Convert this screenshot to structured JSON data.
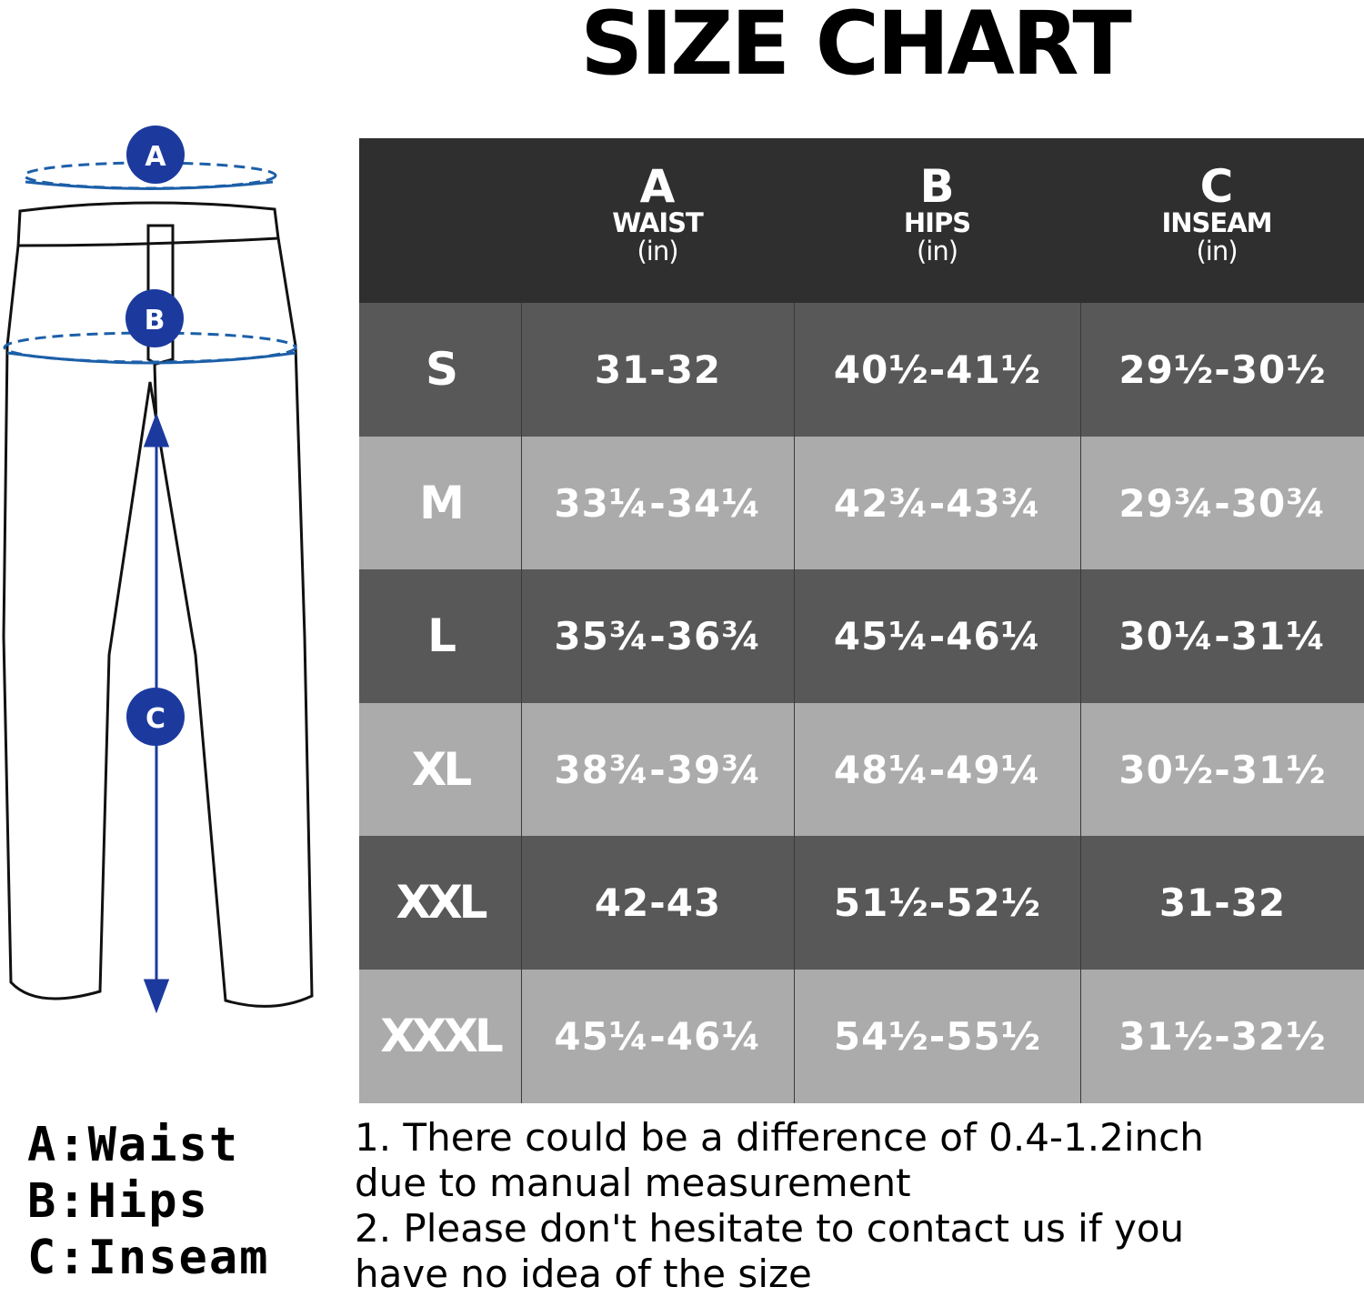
{
  "title": "SIZE CHART",
  "colors": {
    "header_bg": "#2f2f2f",
    "row_dark": "#585858",
    "row_light": "#ababab",
    "marker_blue": "#1c3a9e"
  },
  "illustration": {
    "icon": "pants-outline-icon",
    "markers": [
      "A",
      "B",
      "C"
    ]
  },
  "table": {
    "columns": [
      {
        "letter": "A",
        "name": "WAIST",
        "unit": "(in)"
      },
      {
        "letter": "B",
        "name": "HIPS",
        "unit": "(in)"
      },
      {
        "letter": "C",
        "name": "INSEAM",
        "unit": "(in)"
      }
    ],
    "rows": [
      {
        "size": "S",
        "values": [
          "31-32",
          "40½-41½",
          "29½-30½"
        ]
      },
      {
        "size": "M",
        "values": [
          "33¼-34¼",
          "42¾-43¾",
          "29¾-30¾"
        ]
      },
      {
        "size": "L",
        "values": [
          "35¾-36¾",
          "45¼-46¼",
          "30¼-31¼"
        ]
      },
      {
        "size": "XL",
        "values": [
          "38¾-39¾",
          "48¼-49¼",
          "30½-31½"
        ]
      },
      {
        "size": "XXL",
        "values": [
          "42-43",
          "51½-52½",
          "31-32"
        ]
      },
      {
        "size": "XXXL",
        "values": [
          "45¼-46¼",
          "54½-55½",
          "31½-32½"
        ]
      }
    ]
  },
  "legend": [
    "A:Waist",
    "B:Hips",
    "C:Inseam"
  ],
  "notes": [
    "1. There could be a difference of 0.4-1.2inch",
    "due to manual measurement",
    "2. Please don't hesitate to contact us if you",
    "have no idea of the size"
  ]
}
